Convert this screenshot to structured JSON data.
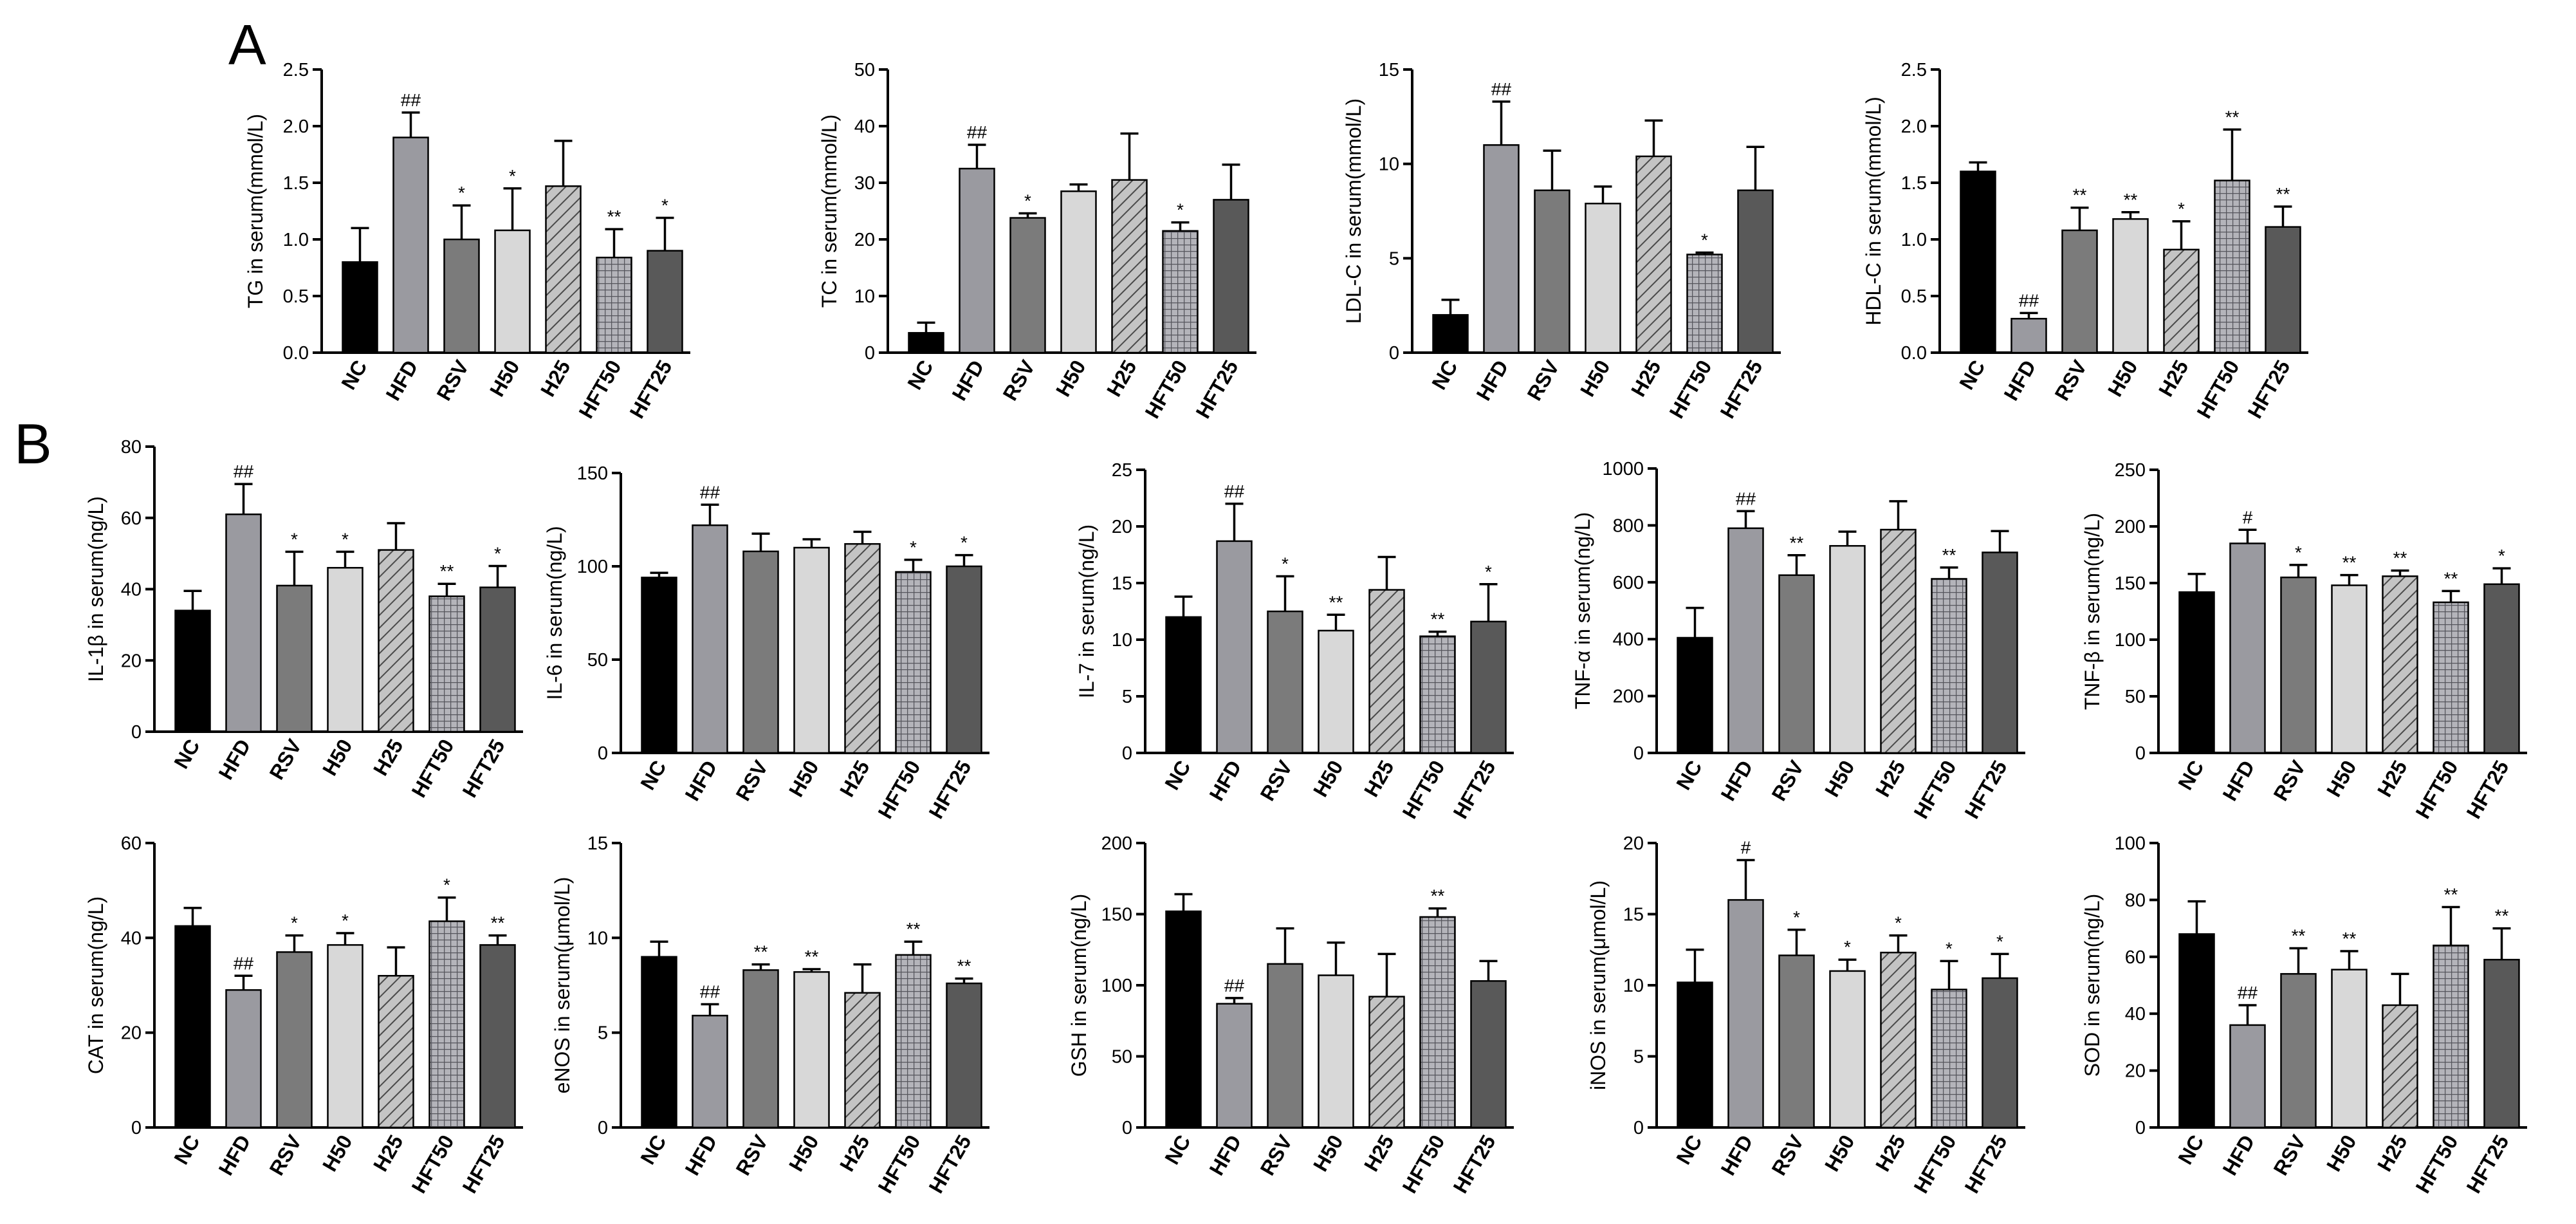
{
  "figure": {
    "panel_labels": [
      "A",
      "B"
    ],
    "colors": {
      "NC": "#000000",
      "HFD": "#9a9aa0",
      "RSV": "#7b7b7b",
      "H50": "#d8d8d8",
      "H25": "#bdbdbd",
      "HFT50": "#a7a7ad",
      "HFT25": "#595959"
    },
    "patterns": {
      "H25": "hatch",
      "HFT50": "grid"
    }
  },
  "chart_data": [
    {
      "type": "bar",
      "panel": "A",
      "title": "",
      "categories": [
        "NC",
        "HFD",
        "RSV",
        "H50",
        "H25",
        "HFT50",
        "HFT25"
      ],
      "values": [
        0.8,
        1.9,
        1.0,
        1.08,
        1.47,
        0.84,
        0.9
      ],
      "errors": [
        0.3,
        0.22,
        0.3,
        0.37,
        0.4,
        0.25,
        0.29
      ],
      "annotations": [
        "",
        "##",
        "*",
        "*",
        "",
        "**",
        "*"
      ],
      "ylabel": "TG in serum(mmol/L)",
      "ylim": [
        0,
        2.5
      ],
      "yticks": [
        "0.0",
        "0.5",
        "1.0",
        "1.5",
        "2.0",
        "2.5"
      ]
    },
    {
      "type": "bar",
      "panel": "A",
      "title": "",
      "categories": [
        "NC",
        "HFD",
        "RSV",
        "H50",
        "H25",
        "HFT50",
        "HFT25"
      ],
      "values": [
        3.5,
        32.5,
        23.8,
        28.5,
        30.5,
        21.5,
        27
      ],
      "errors": [
        1.8,
        4.2,
        0.8,
        1.2,
        8.2,
        1.5,
        6.2
      ],
      "annotations": [
        "",
        "##",
        "*",
        "",
        "",
        "*",
        ""
      ],
      "ylabel": "TC in serum(mmol/L)",
      "ylim": [
        0,
        50
      ],
      "yticks": [
        "0",
        "10",
        "20",
        "30",
        "40",
        "50"
      ]
    },
    {
      "type": "bar",
      "panel": "A",
      "title": "",
      "categories": [
        "NC",
        "HFD",
        "RSV",
        "H50",
        "H25",
        "HFT50",
        "HFT25"
      ],
      "values": [
        2.0,
        11.0,
        8.6,
        7.9,
        10.4,
        5.2,
        8.6
      ],
      "errors": [
        0.8,
        2.3,
        2.1,
        0.9,
        1.9,
        0.1,
        2.3
      ],
      "annotations": [
        "",
        "##",
        "",
        "",
        "",
        "*",
        ""
      ],
      "ylabel": "LDL-C in serum(mmol/L)",
      "ylim": [
        0,
        15
      ],
      "yticks": [
        "0",
        "5",
        "10",
        "15"
      ]
    },
    {
      "type": "bar",
      "panel": "A",
      "title": "",
      "categories": [
        "NC",
        "HFD",
        "RSV",
        "H50",
        "H25",
        "HFT50",
        "HFT25"
      ],
      "values": [
        1.6,
        0.3,
        1.08,
        1.18,
        0.91,
        1.52,
        1.11
      ],
      "errors": [
        0.08,
        0.05,
        0.2,
        0.06,
        0.25,
        0.45,
        0.18
      ],
      "annotations": [
        "",
        "##",
        "**",
        "**",
        "*",
        "**",
        "**"
      ],
      "ylabel": "HDL-C in serum(mmol/L)",
      "ylim": [
        0,
        2.5
      ],
      "yticks": [
        "0.0",
        "0.5",
        "1.0",
        "1.5",
        "2.0",
        "2.5"
      ]
    },
    {
      "type": "bar",
      "panel": "B",
      "title": "",
      "categories": [
        "NC",
        "HFD",
        "RSV",
        "H50",
        "H25",
        "HFT50",
        "HFT25"
      ],
      "values": [
        34,
        61,
        41,
        46,
        51,
        38,
        40.5
      ],
      "errors": [
        5.5,
        8.5,
        9.5,
        4.5,
        7.5,
        3.5,
        6
      ],
      "annotations": [
        "",
        "##",
        "*",
        "*",
        "",
        "**",
        "*"
      ],
      "ylabel": "IL-1β in serum(ng/L)",
      "ylim": [
        0,
        80
      ],
      "yticks": [
        "0",
        "20",
        "40",
        "60",
        "80"
      ]
    },
    {
      "type": "bar",
      "panel": "B",
      "title": "",
      "categories": [
        "NC",
        "HFD",
        "RSV",
        "H50",
        "H25",
        "HFT50",
        "HFT25"
      ],
      "values": [
        94,
        122,
        108,
        110,
        112,
        97,
        100
      ],
      "errors": [
        2.5,
        11,
        9.5,
        4.5,
        6.5,
        6.5,
        6
      ],
      "annotations": [
        "",
        "##",
        "",
        "",
        "",
        "*",
        "*"
      ],
      "ylabel": "IL-6 in serum(ng/L)",
      "ylim": [
        0,
        150
      ],
      "yticks": [
        "0",
        "50",
        "100",
        "150"
      ]
    },
    {
      "type": "bar",
      "panel": "B",
      "title": "",
      "categories": [
        "NC",
        "HFD",
        "RSV",
        "H50",
        "H25",
        "HFT50",
        "HFT25"
      ],
      "values": [
        12,
        18.7,
        12.5,
        10.8,
        14.4,
        10.3,
        11.6
      ],
      "errors": [
        1.8,
        3.3,
        3.1,
        1.4,
        2.9,
        0.4,
        3.3
      ],
      "annotations": [
        "",
        "##",
        "*",
        "**",
        "",
        "**",
        "*"
      ],
      "ylabel": "IL-7 in serum(ng/L)",
      "ylim": [
        0,
        25
      ],
      "yticks": [
        "0",
        "5",
        "10",
        "15",
        "20",
        "25"
      ]
    },
    {
      "type": "bar",
      "panel": "B",
      "title": "",
      "categories": [
        "NC",
        "HFD",
        "RSV",
        "H50",
        "H25",
        "HFT50",
        "HFT25"
      ],
      "values": [
        405,
        790,
        625,
        728,
        785,
        612,
        705
      ],
      "errors": [
        105,
        60,
        70,
        50,
        100,
        40,
        75
      ],
      "annotations": [
        "",
        "##",
        "**",
        "",
        "",
        "**",
        ""
      ],
      "ylabel": "TNF-α in serum(ng/L)",
      "ylim": [
        0,
        1000
      ],
      "yticks": [
        "0",
        "200",
        "400",
        "600",
        "800",
        "1000"
      ]
    },
    {
      "type": "bar",
      "panel": "B",
      "title": "",
      "categories": [
        "NC",
        "HFD",
        "RSV",
        "H50",
        "H25",
        "HFT50",
        "HFT25"
      ],
      "values": [
        142,
        185,
        155,
        148,
        156,
        133,
        149
      ],
      "errors": [
        16,
        12,
        11,
        9,
        5,
        10,
        14
      ],
      "annotations": [
        "",
        "#",
        "*",
        "**",
        "**",
        "**",
        "*"
      ],
      "ylabel": "TNF-β in serum(ng/L)",
      "ylim": [
        0,
        250
      ],
      "yticks": [
        "0",
        "50",
        "100",
        "150",
        "200",
        "250"
      ]
    },
    {
      "type": "bar",
      "panel": "B",
      "title": "",
      "categories": [
        "NC",
        "HFD",
        "RSV",
        "H50",
        "H25",
        "HFT50",
        "HFT25"
      ],
      "values": [
        42.5,
        29,
        37,
        38.5,
        32,
        43.5,
        38.5
      ],
      "errors": [
        3.8,
        3,
        3.5,
        2.5,
        6,
        5,
        2
      ],
      "annotations": [
        "",
        "##",
        "*",
        "*",
        "",
        "*",
        "**"
      ],
      "ylabel": "CAT in serum(ng/L)",
      "ylim": [
        0,
        60
      ],
      "yticks": [
        "0",
        "20",
        "40",
        "60"
      ]
    },
    {
      "type": "bar",
      "panel": "B",
      "title": "",
      "categories": [
        "NC",
        "HFD",
        "RSV",
        "H50",
        "H25",
        "HFT50",
        "HFT25"
      ],
      "values": [
        9.0,
        5.9,
        8.3,
        8.2,
        7.1,
        9.1,
        7.6
      ],
      "errors": [
        0.8,
        0.6,
        0.3,
        0.15,
        1.5,
        0.7,
        0.25
      ],
      "annotations": [
        "",
        "##",
        "**",
        "**",
        "",
        "**",
        "**"
      ],
      "ylabel": "eNOS in serum(μmol/L)",
      "ylim": [
        0,
        15
      ],
      "yticks": [
        "0",
        "5",
        "10",
        "15"
      ]
    },
    {
      "type": "bar",
      "panel": "B",
      "title": "",
      "categories": [
        "NC",
        "HFD",
        "RSV",
        "H50",
        "H25",
        "HFT50",
        "HFT25"
      ],
      "values": [
        152,
        87,
        115,
        107,
        92,
        148,
        103
      ],
      "errors": [
        12,
        4,
        25,
        23,
        30,
        6,
        14
      ],
      "annotations": [
        "",
        "##",
        "",
        "",
        "",
        "**",
        ""
      ],
      "ylabel": "GSH in serum(ng/L)",
      "ylim": [
        0,
        200
      ],
      "yticks": [
        "0",
        "50",
        "100",
        "150",
        "200"
      ]
    },
    {
      "type": "bar",
      "panel": "B",
      "title": "",
      "categories": [
        "NC",
        "HFD",
        "RSV",
        "H50",
        "H25",
        "HFT50",
        "HFT25"
      ],
      "values": [
        10.2,
        16,
        12.1,
        11,
        12.3,
        9.7,
        10.5
      ],
      "errors": [
        2.3,
        2.8,
        1.8,
        0.8,
        1.2,
        2,
        1.7
      ],
      "annotations": [
        "",
        "#",
        "*",
        "*",
        "*",
        "*",
        "*"
      ],
      "ylabel": "iNOS in serum(μmol/L)",
      "ylim": [
        0,
        20
      ],
      "yticks": [
        "0",
        "5",
        "10",
        "15",
        "20"
      ]
    },
    {
      "type": "bar",
      "panel": "B",
      "title": "",
      "categories": [
        "NC",
        "HFD",
        "RSV",
        "H50",
        "H25",
        "HFT50",
        "HFT25"
      ],
      "values": [
        68,
        36,
        54,
        55.5,
        43,
        64,
        59
      ],
      "errors": [
        11.5,
        7,
        9,
        6.5,
        11,
        13.5,
        11
      ],
      "annotations": [
        "",
        "##",
        "**",
        "**",
        "",
        "**",
        "**"
      ],
      "ylabel": "SOD in serum(ng/L)",
      "ylim": [
        0,
        100
      ],
      "yticks": [
        "0",
        "20",
        "40",
        "60",
        "80",
        "100"
      ]
    }
  ]
}
